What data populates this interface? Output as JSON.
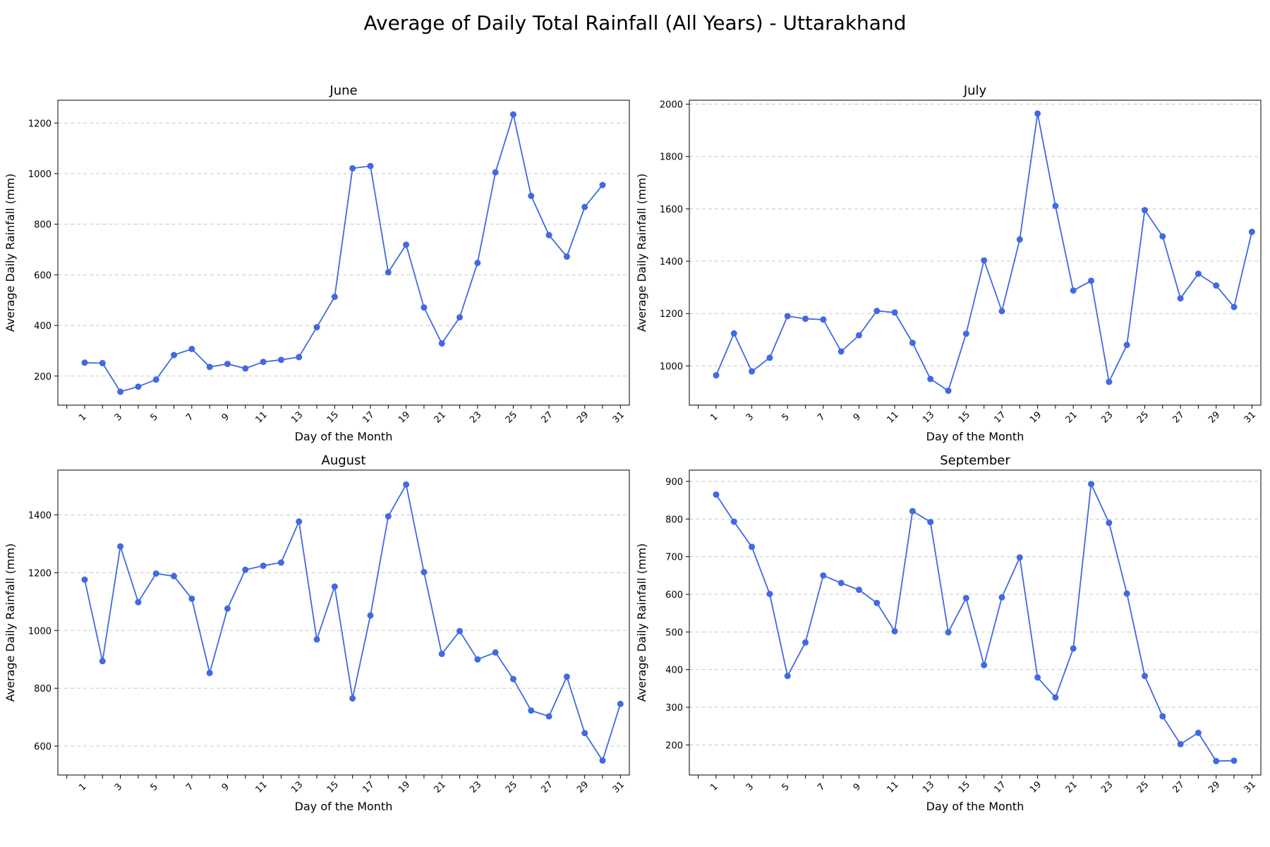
{
  "figure": {
    "title": "Average of Daily Total Rainfall (All Years) - Uttarakhand"
  },
  "colors": {
    "line": "#4169e1",
    "grid": "#c8c8c8",
    "axis": "#000000"
  },
  "chart_data": [
    {
      "type": "line",
      "title": "June",
      "xlabel": "Day of the Month",
      "ylabel": "Average Daily Rainfall (mm)",
      "xlim": [
        -0.5,
        31.5
      ],
      "ylim": [
        85,
        1290
      ],
      "xticks": [
        "1",
        "3",
        "5",
        "7",
        "9",
        "11",
        "13",
        "15",
        "17",
        "19",
        "21",
        "23",
        "25",
        "27",
        "29",
        "31"
      ],
      "yticks": [
        200,
        400,
        600,
        800,
        1000,
        1200
      ],
      "grid": "y",
      "x": [
        1,
        2,
        3,
        4,
        5,
        6,
        7,
        8,
        9,
        10,
        11,
        12,
        13,
        14,
        15,
        16,
        17,
        18,
        19,
        20,
        21,
        22,
        23,
        24,
        25,
        26,
        27,
        28,
        29,
        30
      ],
      "y": [
        253,
        251,
        138,
        158,
        186,
        283,
        307,
        236,
        248,
        230,
        256,
        264,
        275,
        393,
        513,
        1021,
        1030,
        610,
        719,
        471,
        329,
        432,
        647,
        1005,
        1234,
        912,
        757,
        672,
        868,
        955
      ]
    },
    {
      "type": "line",
      "title": "July",
      "xlabel": "Day of the Month",
      "ylabel": "Average Daily Rainfall (mm)",
      "xlim": [
        -0.5,
        31.5
      ],
      "ylim": [
        850,
        2015
      ],
      "xticks": [
        "1",
        "3",
        "5",
        "7",
        "9",
        "11",
        "13",
        "15",
        "17",
        "19",
        "21",
        "23",
        "25",
        "27",
        "29",
        "31"
      ],
      "yticks": [
        1000,
        1200,
        1400,
        1600,
        1800,
        2000
      ],
      "grid": "y",
      "x": [
        1,
        2,
        3,
        4,
        5,
        6,
        7,
        8,
        9,
        10,
        11,
        12,
        13,
        14,
        15,
        16,
        17,
        18,
        19,
        20,
        21,
        22,
        23,
        24,
        25,
        26,
        27,
        28,
        29,
        30,
        31
      ],
      "y": [
        964,
        1124,
        979,
        1031,
        1190,
        1180,
        1177,
        1055,
        1117,
        1210,
        1204,
        1088,
        950,
        905,
        1123,
        1403,
        1209,
        1483,
        1964,
        1611,
        1288,
        1325,
        939,
        1080,
        1595,
        1495,
        1258,
        1352,
        1307,
        1225,
        1512
      ]
    },
    {
      "type": "line",
      "title": "August",
      "xlabel": "Day of the Month",
      "ylabel": "Average Daily Rainfall (mm)",
      "xlim": [
        -0.5,
        31.5
      ],
      "ylim": [
        500,
        1555
      ],
      "xticks": [
        "1",
        "3",
        "5",
        "7",
        "9",
        "11",
        "13",
        "15",
        "17",
        "19",
        "21",
        "23",
        "25",
        "27",
        "29",
        "31"
      ],
      "yticks": [
        600,
        800,
        1000,
        1200,
        1400
      ],
      "grid": "y",
      "x": [
        1,
        2,
        3,
        4,
        5,
        6,
        7,
        8,
        9,
        10,
        11,
        12,
        13,
        14,
        15,
        16,
        17,
        18,
        19,
        20,
        21,
        22,
        23,
        24,
        25,
        26,
        27,
        28,
        29,
        30,
        31
      ],
      "y": [
        1176,
        894,
        1291,
        1098,
        1197,
        1188,
        1110,
        853,
        1076,
        1210,
        1224,
        1235,
        1377,
        969,
        1152,
        765,
        1052,
        1395,
        1505,
        1202,
        919,
        998,
        900,
        924,
        832,
        723,
        703,
        840,
        645,
        550,
        746
      ]
    },
    {
      "type": "line",
      "title": "September",
      "xlabel": "Day of the Month",
      "ylabel": "Average Daily Rainfall (mm)",
      "xlim": [
        -0.5,
        31.5
      ],
      "ylim": [
        120,
        930
      ],
      "xticks": [
        "1",
        "3",
        "5",
        "7",
        "9",
        "11",
        "13",
        "15",
        "17",
        "19",
        "21",
        "23",
        "25",
        "27",
        "29",
        "31"
      ],
      "yticks": [
        200,
        300,
        400,
        500,
        600,
        700,
        800,
        900
      ],
      "grid": "y",
      "x": [
        1,
        2,
        3,
        4,
        5,
        6,
        7,
        8,
        9,
        10,
        11,
        12,
        13,
        14,
        15,
        16,
        17,
        18,
        19,
        20,
        21,
        22,
        23,
        24,
        25,
        26,
        27,
        28,
        29,
        30
      ],
      "y": [
        865,
        793,
        726,
        601,
        383,
        472,
        650,
        630,
        612,
        577,
        502,
        821,
        792,
        499,
        590,
        412,
        592,
        698,
        379,
        326,
        456,
        893,
        790,
        602,
        383,
        276,
        202,
        232,
        157,
        158
      ]
    }
  ]
}
